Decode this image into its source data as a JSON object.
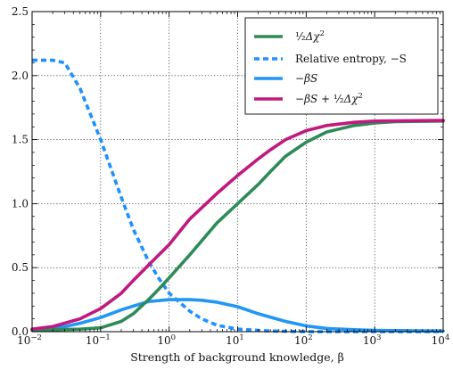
{
  "chart_data": {
    "type": "line",
    "title": "",
    "xlabel": "Strength of background knowledge, β",
    "ylabel": "",
    "xscale": "log",
    "xlim": [
      0.01,
      10000
    ],
    "ylim": [
      0,
      2.5
    ],
    "grid": true,
    "legend_position": "top-right",
    "x_ticks": [
      {
        "value": 0.01,
        "base": "10",
        "exp": "−2"
      },
      {
        "value": 0.1,
        "base": "10",
        "exp": "−1"
      },
      {
        "value": 1,
        "base": "10",
        "exp": "0"
      },
      {
        "value": 10,
        "base": "10",
        "exp": "1"
      },
      {
        "value": 100,
        "base": "10",
        "exp": "2"
      },
      {
        "value": 1000,
        "base": "10",
        "exp": "3"
      },
      {
        "value": 10000,
        "base": "10",
        "exp": "4"
      }
    ],
    "y_ticks": [
      {
        "value": 0.0,
        "label": "0.0"
      },
      {
        "value": 0.5,
        "label": "0.5"
      },
      {
        "value": 1.0,
        "label": "1.0"
      },
      {
        "value": 1.5,
        "label": "1.5"
      },
      {
        "value": 2.0,
        "label": "2.0"
      },
      {
        "value": 2.5,
        "label": "2.5"
      }
    ],
    "series": [
      {
        "name": "½Δχ²",
        "color": "#2e8b57",
        "dash": "solid",
        "points": [
          [
            0.01,
            0.01
          ],
          [
            0.02,
            0.015
          ],
          [
            0.05,
            0.02
          ],
          [
            0.1,
            0.03
          ],
          [
            0.2,
            0.08
          ],
          [
            0.3,
            0.14
          ],
          [
            0.5,
            0.25
          ],
          [
            0.7,
            0.33
          ],
          [
            1,
            0.42
          ],
          [
            2,
            0.6
          ],
          [
            5,
            0.85
          ],
          [
            10,
            1.0
          ],
          [
            20,
            1.15
          ],
          [
            30,
            1.25
          ],
          [
            50,
            1.37
          ],
          [
            100,
            1.48
          ],
          [
            200,
            1.56
          ],
          [
            500,
            1.61
          ],
          [
            1000,
            1.63
          ],
          [
            2000,
            1.64
          ],
          [
            10000,
            1.645
          ]
        ]
      },
      {
        "name": "Relative entropy, −S",
        "color": "#1e90ff",
        "dash": "dashed",
        "points": [
          [
            0.01,
            2.12
          ],
          [
            0.02,
            2.12
          ],
          [
            0.03,
            2.1
          ],
          [
            0.05,
            1.9
          ],
          [
            0.1,
            1.5
          ],
          [
            0.2,
            1.05
          ],
          [
            0.3,
            0.8
          ],
          [
            0.5,
            0.55
          ],
          [
            0.7,
            0.42
          ],
          [
            1,
            0.3
          ],
          [
            2,
            0.16
          ],
          [
            3,
            0.1
          ],
          [
            5,
            0.05
          ],
          [
            10,
            0.02
          ],
          [
            30,
            0.005
          ],
          [
            100,
            0.0
          ],
          [
            10000,
            0.0
          ]
        ]
      },
      {
        "name": "−βS",
        "color": "#2196f3",
        "dash": "solid",
        "points": [
          [
            0.01,
            0.015
          ],
          [
            0.03,
            0.04
          ],
          [
            0.05,
            0.065
          ],
          [
            0.1,
            0.11
          ],
          [
            0.2,
            0.17
          ],
          [
            0.3,
            0.2
          ],
          [
            0.5,
            0.235
          ],
          [
            1,
            0.25
          ],
          [
            2,
            0.25
          ],
          [
            3,
            0.245
          ],
          [
            5,
            0.23
          ],
          [
            10,
            0.195
          ],
          [
            20,
            0.14
          ],
          [
            50,
            0.08
          ],
          [
            100,
            0.045
          ],
          [
            200,
            0.025
          ],
          [
            500,
            0.015
          ],
          [
            1000,
            0.01
          ],
          [
            10000,
            0.005
          ]
        ]
      },
      {
        "name": "−βS + ½Δχ²",
        "color": "#c0197f",
        "dash": "solid",
        "points": [
          [
            0.01,
            0.02
          ],
          [
            0.02,
            0.04
          ],
          [
            0.05,
            0.1
          ],
          [
            0.1,
            0.18
          ],
          [
            0.2,
            0.3
          ],
          [
            0.3,
            0.4
          ],
          [
            0.5,
            0.52
          ],
          [
            1,
            0.68
          ],
          [
            2,
            0.88
          ],
          [
            5,
            1.08
          ],
          [
            10,
            1.22
          ],
          [
            20,
            1.35
          ],
          [
            30,
            1.42
          ],
          [
            50,
            1.5
          ],
          [
            100,
            1.57
          ],
          [
            200,
            1.61
          ],
          [
            500,
            1.635
          ],
          [
            1000,
            1.645
          ],
          [
            10000,
            1.65
          ]
        ]
      }
    ]
  },
  "legend": {
    "entries": [
      {
        "series_index": 0,
        "label": ""
      },
      {
        "series_index": 1,
        "label": "Relative entropy, −S"
      },
      {
        "series_index": 2,
        "label": ""
      },
      {
        "series_index": 3,
        "label": ""
      }
    ]
  }
}
